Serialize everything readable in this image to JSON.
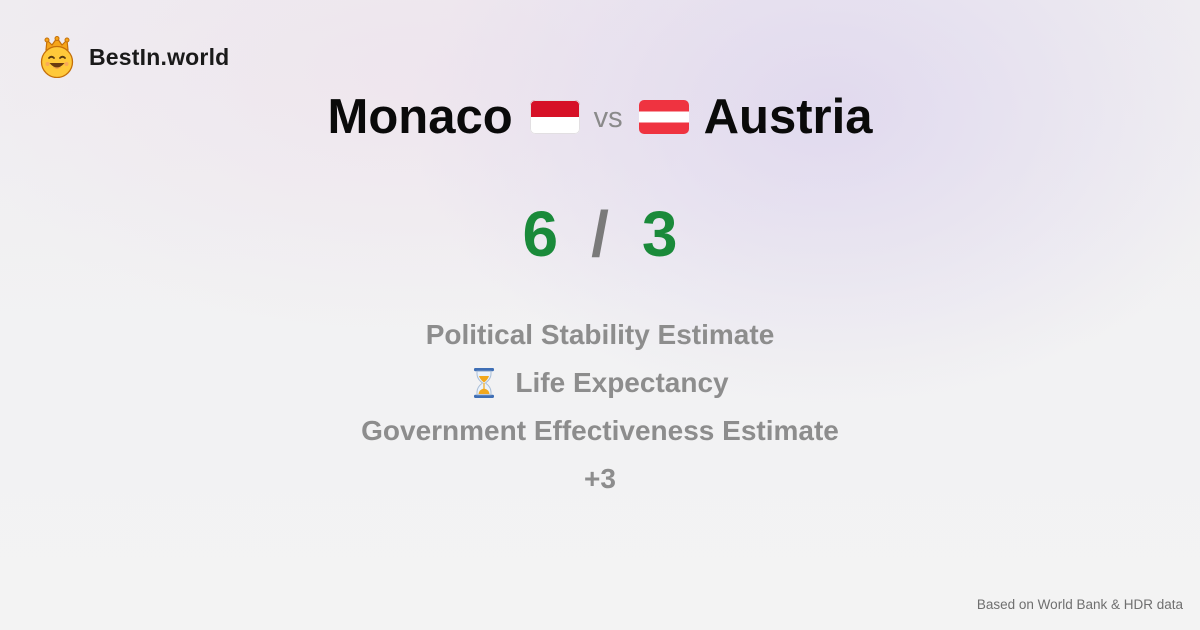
{
  "brand": {
    "name": "BestIn.world",
    "logo_icon": "crowned-smiley-icon"
  },
  "comparison": {
    "left_country": "Monaco",
    "left_flag": "monaco-flag-icon",
    "vs_label": "vs",
    "right_country": "Austria",
    "right_flag": "austria-flag-icon"
  },
  "score": {
    "left": "6",
    "separator": "/",
    "right": "3",
    "color": "#1a8a3a"
  },
  "metrics": [
    {
      "label": "Political Stability Estimate",
      "icon": ""
    },
    {
      "label": "Life Expectancy",
      "icon": "hourglass-icon"
    },
    {
      "label": "Government Effectiveness Estimate",
      "icon": ""
    },
    {
      "label": "+3",
      "icon": ""
    }
  ],
  "footer": {
    "source_note": "Based on World Bank & HDR data"
  }
}
